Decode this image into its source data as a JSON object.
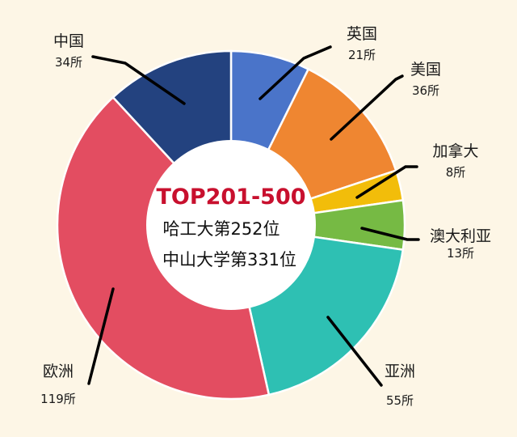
{
  "chart_data": {
    "type": "pie",
    "categories": [
      "英国",
      "美国",
      "加拿大",
      "澳大利亚",
      "亚洲",
      "欧洲",
      "中国"
    ],
    "values": [
      21,
      36,
      8,
      13,
      55,
      119,
      34
    ],
    "labels": [
      "21所",
      "36所",
      "8所",
      "13所",
      "55所",
      "119所",
      "34所"
    ],
    "colors": [
      "#4a74c9",
      "#ef8631",
      "#f2bd0a",
      "#76ba44",
      "#2ec0b3",
      "#e34d61",
      "#23427f"
    ],
    "center_text": {
      "title": "TOP201-500",
      "line1": "哈工大第252位",
      "line2": "中山大学第331位",
      "title_color": "#c8102e"
    }
  }
}
